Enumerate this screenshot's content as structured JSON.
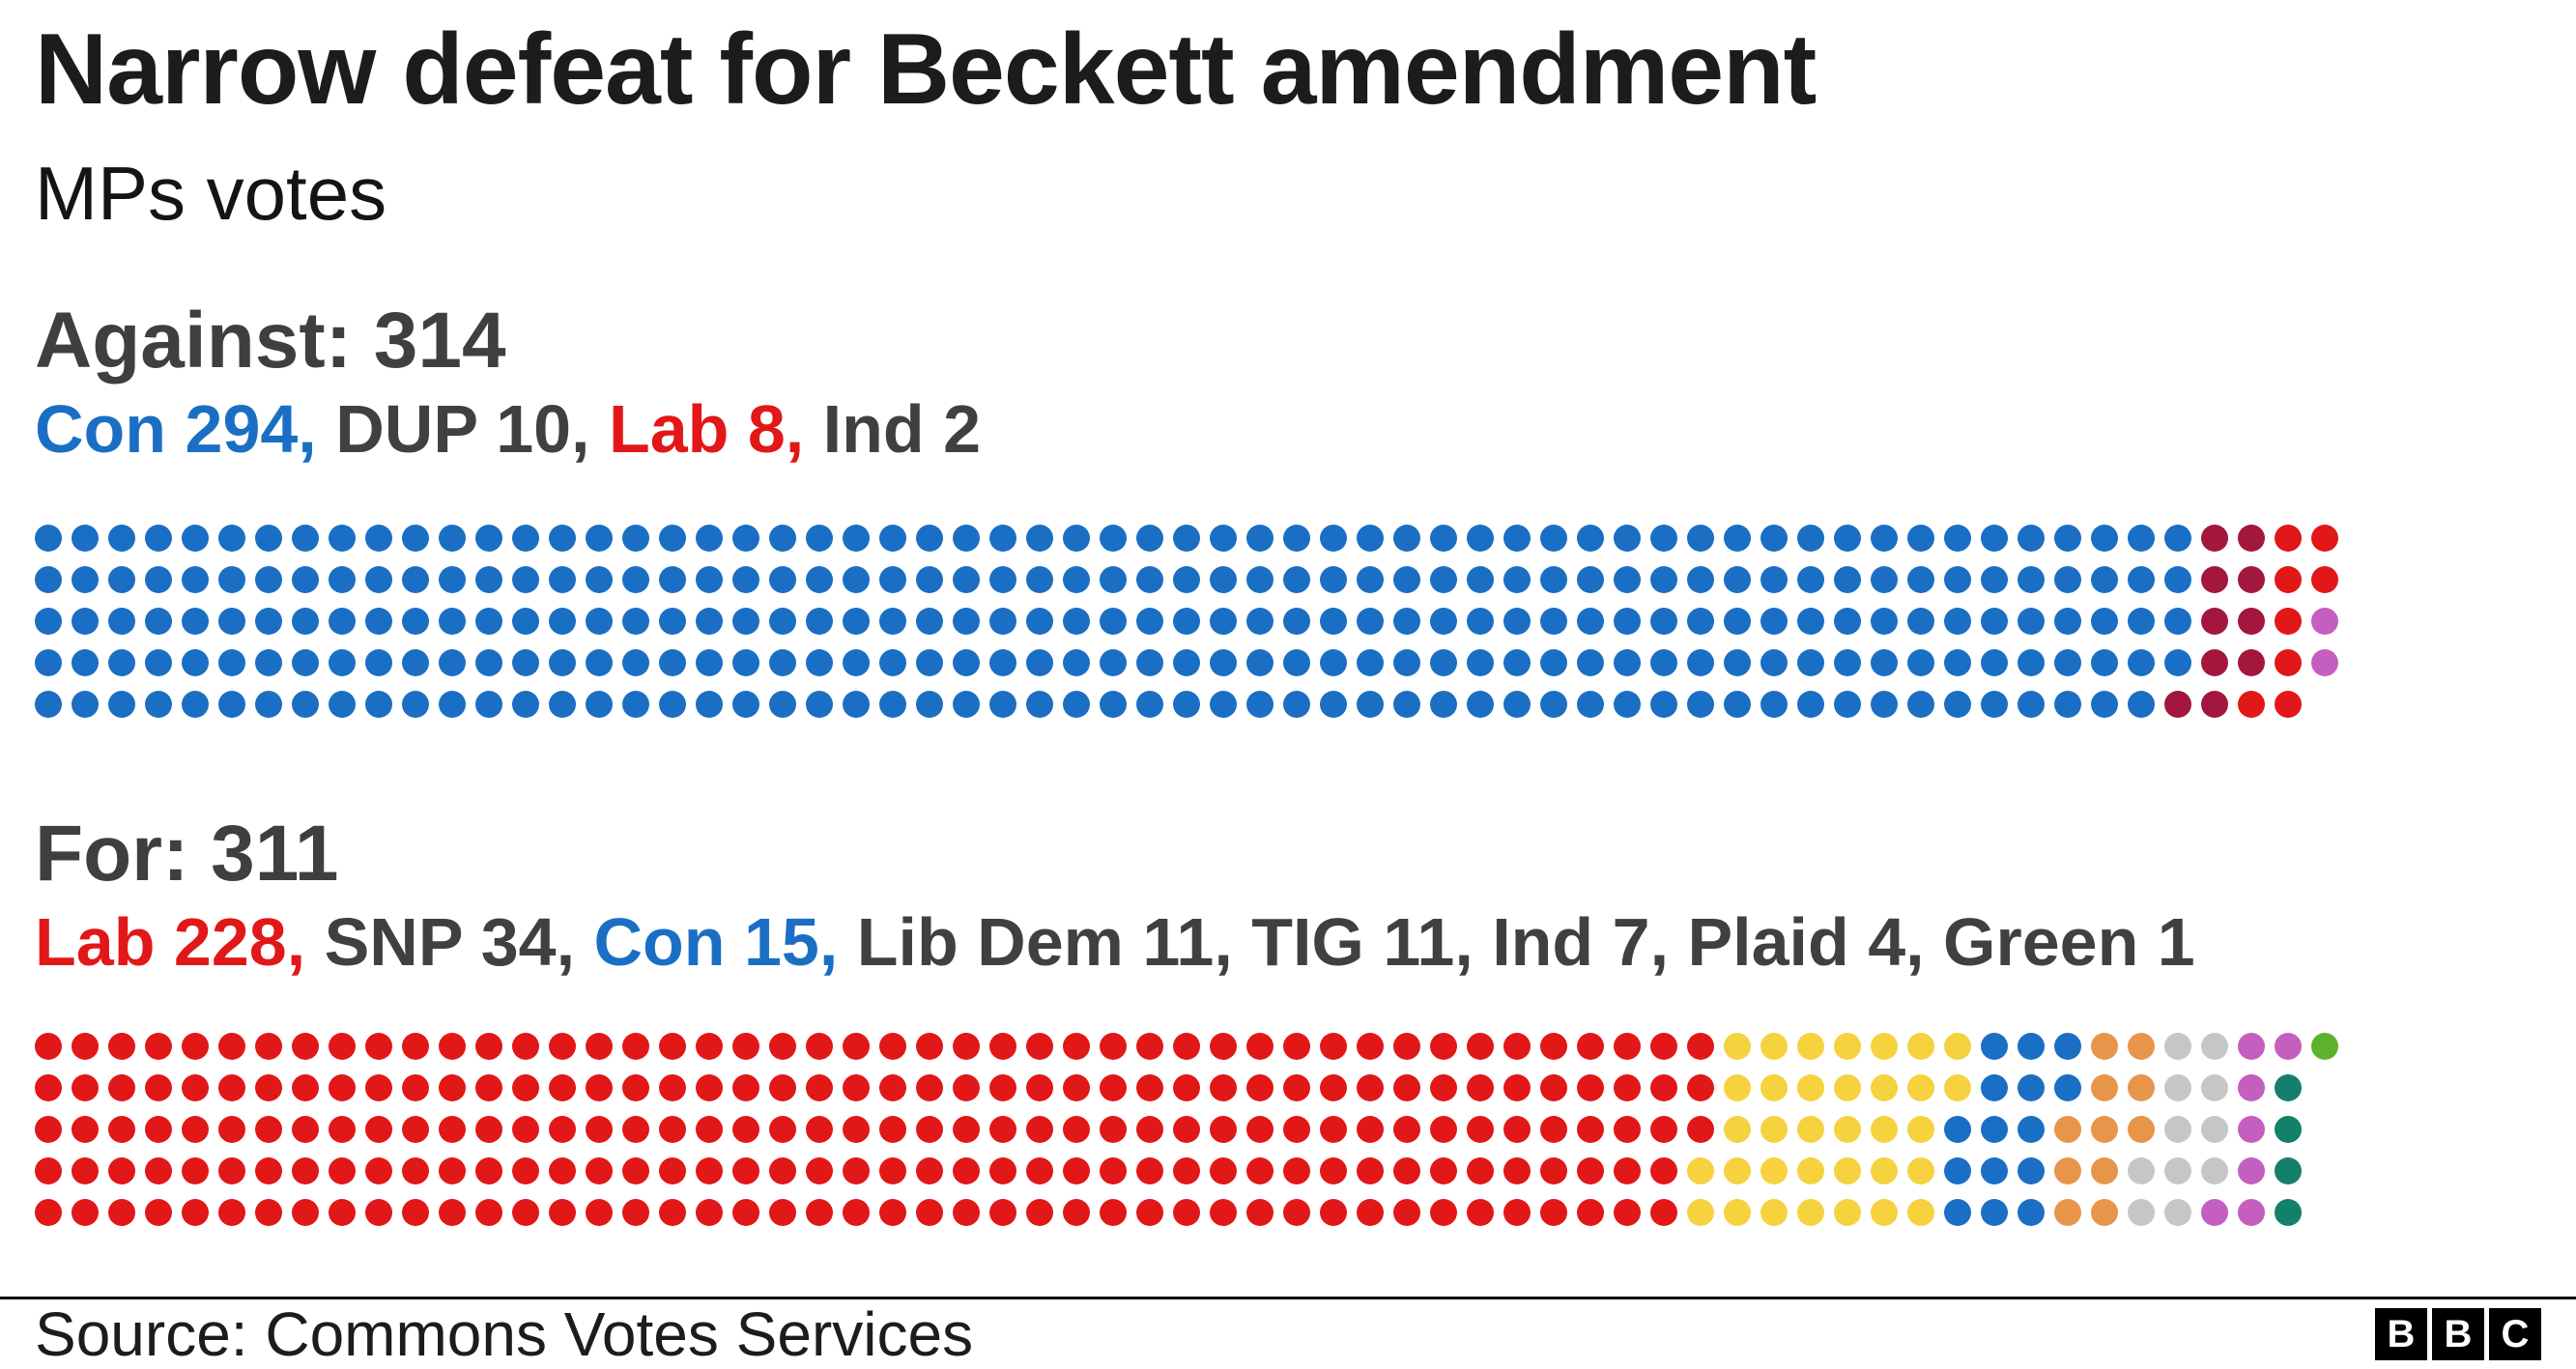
{
  "header": {
    "title": "Narrow defeat for Beckett amendment",
    "subtitle": "MPs votes"
  },
  "colors": {
    "con_blue": "#1a6fc4",
    "dup_maroon": "#a3173e",
    "lab_red": "#e21717",
    "ind_purple": "#c45fc0",
    "snp_yellow": "#f6d23e",
    "libdem_orange": "#e8954c",
    "tig_gray": "#c6c6c6",
    "plaid_teal": "#12806b",
    "green_green": "#5cb32b",
    "heading_gray": "#3f3f42",
    "text_dark": "#404040"
  },
  "chart_data": [
    {
      "type": "parliament-dots",
      "heading": "Against: 314",
      "total": 314,
      "rows": 5,
      "columns": 63,
      "fill_order": "column-major-top-to-bottom",
      "breakdown": [
        {
          "text": "Con 294,",
          "color": "#1a6fc4"
        },
        {
          "text": " DUP 10,",
          "color": "#404040"
        },
        {
          "text": " Lab 8,",
          "color": "#e21717"
        },
        {
          "text": " Ind 2",
          "color": "#404040"
        }
      ],
      "parties": [
        {
          "name": "Con",
          "count": 294,
          "color": "#1a6fc4"
        },
        {
          "name": "DUP",
          "count": 10,
          "color": "#a3173e"
        },
        {
          "name": "Lab",
          "count": 8,
          "color": "#e21717"
        },
        {
          "name": "Ind",
          "count": 2,
          "color": "#c45fc0"
        }
      ]
    },
    {
      "type": "parliament-dots",
      "heading": "For: 311",
      "total": 311,
      "rows": 5,
      "columns": 63,
      "fill_order": "column-major-top-to-bottom",
      "breakdown": [
        {
          "text": "Lab 228,",
          "color": "#e21717"
        },
        {
          "text": " SNP 34,",
          "color": "#404040"
        },
        {
          "text": " Con 15,",
          "color": "#1a6fc4"
        },
        {
          "text": " Lib Dem 11, TIG 11, Ind 7, Plaid 4, Green 1",
          "color": "#404040"
        }
      ],
      "parties": [
        {
          "name": "Lab",
          "count": 228,
          "color": "#e21717"
        },
        {
          "name": "SNP",
          "count": 34,
          "color": "#f6d23e"
        },
        {
          "name": "Con",
          "count": 15,
          "color": "#1a6fc4"
        },
        {
          "name": "Lib Dem",
          "count": 11,
          "color": "#e8954c"
        },
        {
          "name": "TIG",
          "count": 11,
          "color": "#c6c6c6"
        },
        {
          "name": "Ind",
          "count": 7,
          "color": "#c45fc0"
        },
        {
          "name": "Plaid",
          "count": 4,
          "color": "#12806b"
        },
        {
          "name": "Green",
          "count": 1,
          "color": "#5cb32b"
        }
      ]
    }
  ],
  "footer": {
    "source": "Source: Commons Votes Services",
    "logo_letters": [
      "B",
      "B",
      "C"
    ]
  }
}
